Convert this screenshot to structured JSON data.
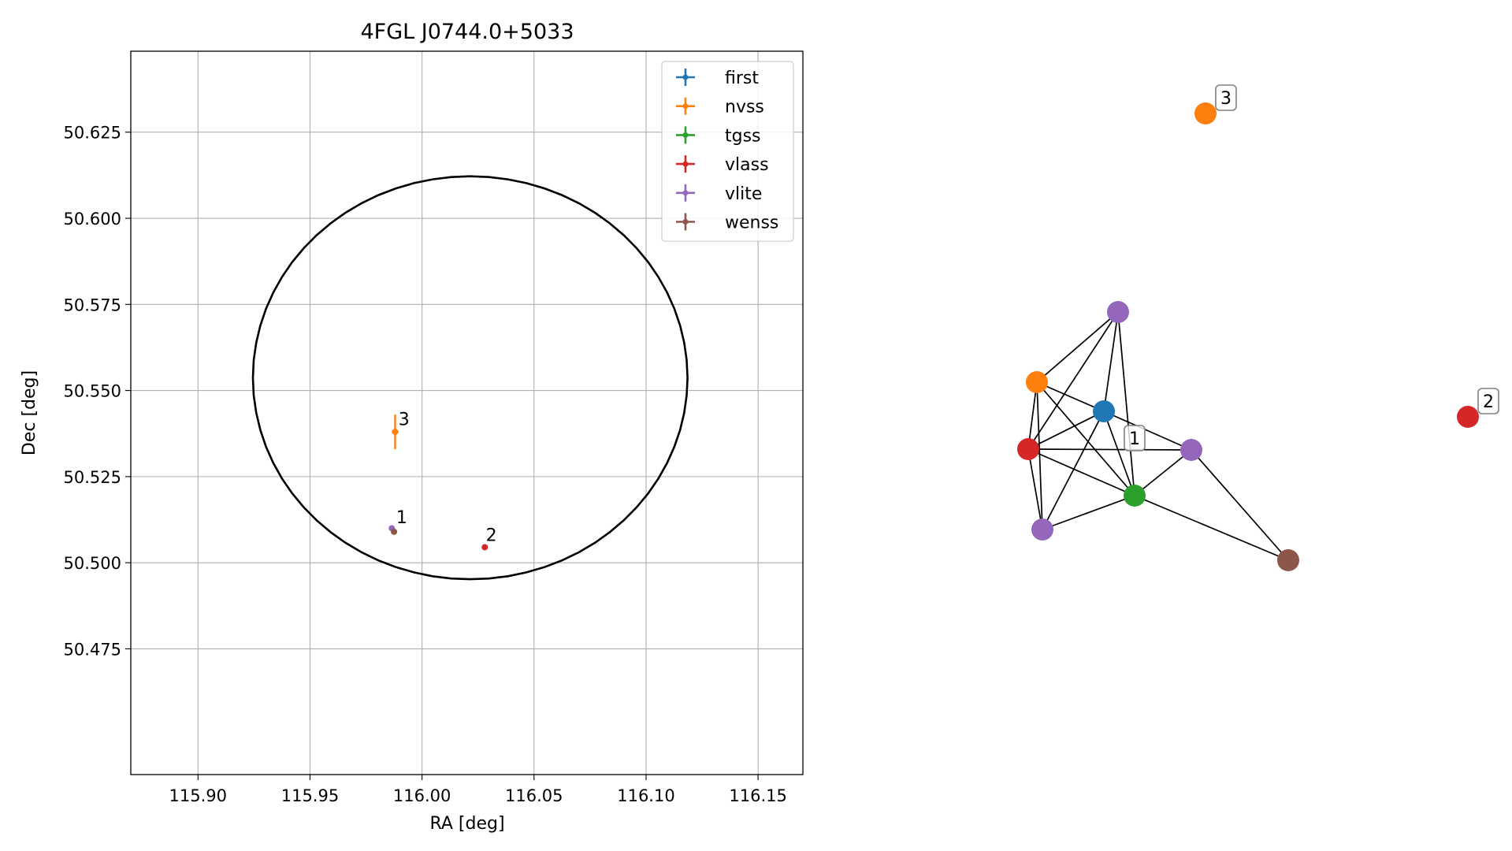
{
  "chart_data": [
    {
      "type": "scatter",
      "title": "4FGL J0744.0+5033",
      "xlabel": "RA [deg]",
      "ylabel": "Dec [deg]",
      "xlim": [
        115.87,
        116.17
      ],
      "ylim": [
        50.4385,
        50.6485
      ],
      "xticks": [
        115.9,
        115.95,
        116.0,
        116.05,
        116.1,
        116.15
      ],
      "xtick_labels": [
        "115.90",
        "115.95",
        "116.00",
        "116.05",
        "116.10",
        "116.15"
      ],
      "yticks": [
        50.475,
        50.5,
        50.525,
        50.55,
        50.575,
        50.6,
        50.625
      ],
      "ytick_labels": [
        "50.475",
        "50.500",
        "50.525",
        "50.550",
        "50.575",
        "50.600",
        "50.625"
      ],
      "grid": true,
      "legend_position": "top-right",
      "series": [
        {
          "name": "first",
          "color": "#1f77b4",
          "points": []
        },
        {
          "name": "nvss",
          "color": "#ff7f0e",
          "points": [
            {
              "x": 115.988,
              "y": 50.538,
              "yerr": 0.005,
              "xerr": 0.0015
            }
          ]
        },
        {
          "name": "tgss",
          "color": "#2ca02c",
          "points": []
        },
        {
          "name": "vlass",
          "color": "#d62728",
          "points": [
            {
              "x": 116.028,
              "y": 50.5045,
              "yerr": 0.0,
              "xerr": 0.0
            }
          ]
        },
        {
          "name": "vlite",
          "color": "#9467bd",
          "points": [
            {
              "x": 115.9865,
              "y": 50.51,
              "yerr": 0.0005,
              "xerr": 0.0005
            }
          ]
        },
        {
          "name": "wenss",
          "color": "#8c564b",
          "points": [
            {
              "x": 115.9875,
              "y": 50.509,
              "yerr": 0.0,
              "xerr": 0.0
            }
          ]
        }
      ],
      "ellipse": {
        "center_ra": 116.0215,
        "center_dec": 50.5537,
        "semi_ra": 0.097,
        "semi_dec": 0.0585,
        "color": "#000000"
      },
      "annotations": [
        {
          "text": "1",
          "x": 115.9885,
          "y": 50.5115
        },
        {
          "text": "2",
          "x": 116.0285,
          "y": 50.5063
        },
        {
          "text": "3",
          "x": 115.9895,
          "y": 50.54
        }
      ]
    },
    {
      "type": "network",
      "nodes": [
        {
          "id": "n1",
          "color": "#9467bd"
        },
        {
          "id": "n2",
          "color": "#ff7f0e"
        },
        {
          "id": "n3",
          "color": "#1f77b4"
        },
        {
          "id": "n4",
          "color": "#d62728"
        },
        {
          "id": "n5",
          "color": "#9467bd"
        },
        {
          "id": "n6",
          "color": "#2ca02c"
        },
        {
          "id": "n7",
          "color": "#9467bd"
        },
        {
          "id": "n8",
          "color": "#8c564b"
        },
        {
          "id": "n9",
          "color": "#ff7f0e"
        },
        {
          "id": "n10",
          "color": "#d62728"
        }
      ],
      "edges": [
        [
          "n1",
          "n2"
        ],
        [
          "n1",
          "n3"
        ],
        [
          "n1",
          "n4"
        ],
        [
          "n1",
          "n6"
        ],
        [
          "n2",
          "n3"
        ],
        [
          "n2",
          "n4"
        ],
        [
          "n2",
          "n6"
        ],
        [
          "n2",
          "n7"
        ],
        [
          "n3",
          "n4"
        ],
        [
          "n3",
          "n6"
        ],
        [
          "n3",
          "n5"
        ],
        [
          "n3",
          "n7"
        ],
        [
          "n4",
          "n5"
        ],
        [
          "n4",
          "n6"
        ],
        [
          "n4",
          "n7"
        ],
        [
          "n5",
          "n6"
        ],
        [
          "n5",
          "n8"
        ],
        [
          "n6",
          "n7"
        ],
        [
          "n6",
          "n8"
        ]
      ],
      "labels": [
        {
          "text": "1",
          "node": "n3"
        },
        {
          "text": "2",
          "node": "n10"
        },
        {
          "text": "3",
          "node": "n9"
        }
      ]
    }
  ]
}
